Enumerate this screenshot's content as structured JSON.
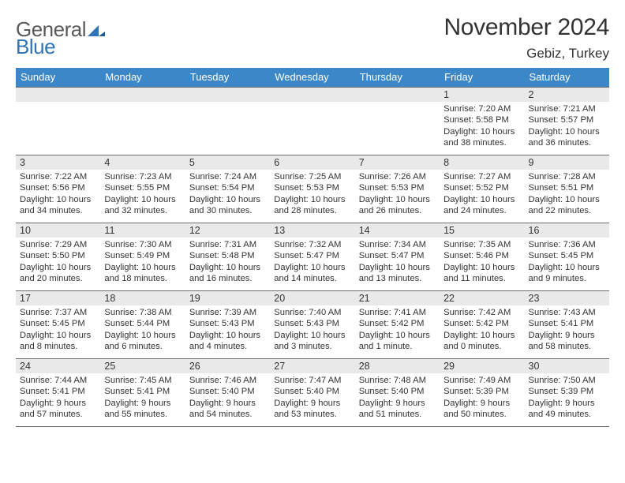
{
  "logo": {
    "part1": "General",
    "part2": "Blue"
  },
  "header": {
    "month_title": "November 2024",
    "location": "Gebiz, Turkey"
  },
  "colors": {
    "header_blue": "#3b87c8",
    "logo_blue": "#2f74b5",
    "logo_gray": "#5a5a5a",
    "daynum_bg": "#e9e9e9",
    "text": "#333333",
    "border": "#6d6d6d",
    "page_bg": "#ffffff"
  },
  "day_names": [
    "Sunday",
    "Monday",
    "Tuesday",
    "Wednesday",
    "Thursday",
    "Friday",
    "Saturday"
  ],
  "weeks": [
    [
      {
        "num": "",
        "sunrise": "",
        "sunset": "",
        "daylight": ""
      },
      {
        "num": "",
        "sunrise": "",
        "sunset": "",
        "daylight": ""
      },
      {
        "num": "",
        "sunrise": "",
        "sunset": "",
        "daylight": ""
      },
      {
        "num": "",
        "sunrise": "",
        "sunset": "",
        "daylight": ""
      },
      {
        "num": "",
        "sunrise": "",
        "sunset": "",
        "daylight": ""
      },
      {
        "num": "1",
        "sunrise": "Sunrise: 7:20 AM",
        "sunset": "Sunset: 5:58 PM",
        "daylight": "Daylight: 10 hours and 38 minutes."
      },
      {
        "num": "2",
        "sunrise": "Sunrise: 7:21 AM",
        "sunset": "Sunset: 5:57 PM",
        "daylight": "Daylight: 10 hours and 36 minutes."
      }
    ],
    [
      {
        "num": "3",
        "sunrise": "Sunrise: 7:22 AM",
        "sunset": "Sunset: 5:56 PM",
        "daylight": "Daylight: 10 hours and 34 minutes."
      },
      {
        "num": "4",
        "sunrise": "Sunrise: 7:23 AM",
        "sunset": "Sunset: 5:55 PM",
        "daylight": "Daylight: 10 hours and 32 minutes."
      },
      {
        "num": "5",
        "sunrise": "Sunrise: 7:24 AM",
        "sunset": "Sunset: 5:54 PM",
        "daylight": "Daylight: 10 hours and 30 minutes."
      },
      {
        "num": "6",
        "sunrise": "Sunrise: 7:25 AM",
        "sunset": "Sunset: 5:53 PM",
        "daylight": "Daylight: 10 hours and 28 minutes."
      },
      {
        "num": "7",
        "sunrise": "Sunrise: 7:26 AM",
        "sunset": "Sunset: 5:53 PM",
        "daylight": "Daylight: 10 hours and 26 minutes."
      },
      {
        "num": "8",
        "sunrise": "Sunrise: 7:27 AM",
        "sunset": "Sunset: 5:52 PM",
        "daylight": "Daylight: 10 hours and 24 minutes."
      },
      {
        "num": "9",
        "sunrise": "Sunrise: 7:28 AM",
        "sunset": "Sunset: 5:51 PM",
        "daylight": "Daylight: 10 hours and 22 minutes."
      }
    ],
    [
      {
        "num": "10",
        "sunrise": "Sunrise: 7:29 AM",
        "sunset": "Sunset: 5:50 PM",
        "daylight": "Daylight: 10 hours and 20 minutes."
      },
      {
        "num": "11",
        "sunrise": "Sunrise: 7:30 AM",
        "sunset": "Sunset: 5:49 PM",
        "daylight": "Daylight: 10 hours and 18 minutes."
      },
      {
        "num": "12",
        "sunrise": "Sunrise: 7:31 AM",
        "sunset": "Sunset: 5:48 PM",
        "daylight": "Daylight: 10 hours and 16 minutes."
      },
      {
        "num": "13",
        "sunrise": "Sunrise: 7:32 AM",
        "sunset": "Sunset: 5:47 PM",
        "daylight": "Daylight: 10 hours and 14 minutes."
      },
      {
        "num": "14",
        "sunrise": "Sunrise: 7:34 AM",
        "sunset": "Sunset: 5:47 PM",
        "daylight": "Daylight: 10 hours and 13 minutes."
      },
      {
        "num": "15",
        "sunrise": "Sunrise: 7:35 AM",
        "sunset": "Sunset: 5:46 PM",
        "daylight": "Daylight: 10 hours and 11 minutes."
      },
      {
        "num": "16",
        "sunrise": "Sunrise: 7:36 AM",
        "sunset": "Sunset: 5:45 PM",
        "daylight": "Daylight: 10 hours and 9 minutes."
      }
    ],
    [
      {
        "num": "17",
        "sunrise": "Sunrise: 7:37 AM",
        "sunset": "Sunset: 5:45 PM",
        "daylight": "Daylight: 10 hours and 8 minutes."
      },
      {
        "num": "18",
        "sunrise": "Sunrise: 7:38 AM",
        "sunset": "Sunset: 5:44 PM",
        "daylight": "Daylight: 10 hours and 6 minutes."
      },
      {
        "num": "19",
        "sunrise": "Sunrise: 7:39 AM",
        "sunset": "Sunset: 5:43 PM",
        "daylight": "Daylight: 10 hours and 4 minutes."
      },
      {
        "num": "20",
        "sunrise": "Sunrise: 7:40 AM",
        "sunset": "Sunset: 5:43 PM",
        "daylight": "Daylight: 10 hours and 3 minutes."
      },
      {
        "num": "21",
        "sunrise": "Sunrise: 7:41 AM",
        "sunset": "Sunset: 5:42 PM",
        "daylight": "Daylight: 10 hours and 1 minute."
      },
      {
        "num": "22",
        "sunrise": "Sunrise: 7:42 AM",
        "sunset": "Sunset: 5:42 PM",
        "daylight": "Daylight: 10 hours and 0 minutes."
      },
      {
        "num": "23",
        "sunrise": "Sunrise: 7:43 AM",
        "sunset": "Sunset: 5:41 PM",
        "daylight": "Daylight: 9 hours and 58 minutes."
      }
    ],
    [
      {
        "num": "24",
        "sunrise": "Sunrise: 7:44 AM",
        "sunset": "Sunset: 5:41 PM",
        "daylight": "Daylight: 9 hours and 57 minutes."
      },
      {
        "num": "25",
        "sunrise": "Sunrise: 7:45 AM",
        "sunset": "Sunset: 5:41 PM",
        "daylight": "Daylight: 9 hours and 55 minutes."
      },
      {
        "num": "26",
        "sunrise": "Sunrise: 7:46 AM",
        "sunset": "Sunset: 5:40 PM",
        "daylight": "Daylight: 9 hours and 54 minutes."
      },
      {
        "num": "27",
        "sunrise": "Sunrise: 7:47 AM",
        "sunset": "Sunset: 5:40 PM",
        "daylight": "Daylight: 9 hours and 53 minutes."
      },
      {
        "num": "28",
        "sunrise": "Sunrise: 7:48 AM",
        "sunset": "Sunset: 5:40 PM",
        "daylight": "Daylight: 9 hours and 51 minutes."
      },
      {
        "num": "29",
        "sunrise": "Sunrise: 7:49 AM",
        "sunset": "Sunset: 5:39 PM",
        "daylight": "Daylight: 9 hours and 50 minutes."
      },
      {
        "num": "30",
        "sunrise": "Sunrise: 7:50 AM",
        "sunset": "Sunset: 5:39 PM",
        "daylight": "Daylight: 9 hours and 49 minutes."
      }
    ]
  ]
}
